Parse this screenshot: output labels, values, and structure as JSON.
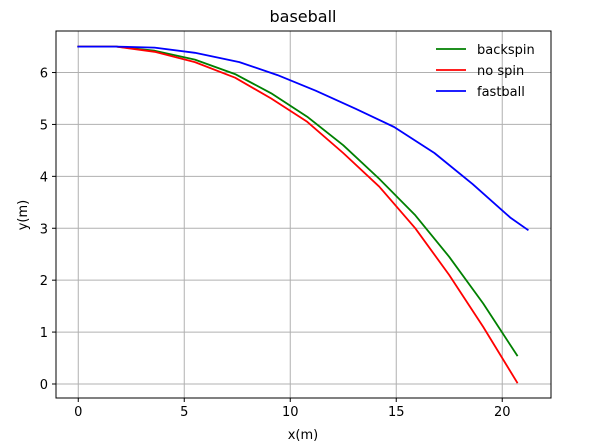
{
  "chart_data": {
    "type": "line",
    "title": "baseball",
    "xlabel": "x(m)",
    "ylabel": "y(m)",
    "xlim": [
      -1.05,
      22.3
    ],
    "ylim": [
      -0.27,
      6.8
    ],
    "xticks": [
      0,
      5,
      10,
      15,
      20
    ],
    "yticks": [
      0,
      1,
      2,
      3,
      4,
      5,
      6
    ],
    "grid": true,
    "legend_position": "top-right",
    "series": [
      {
        "name": "backspin",
        "color": "#008000",
        "x": [
          0,
          1.8,
          3.6,
          5.5,
          7.4,
          9.1,
          10.8,
          12.5,
          14.2,
          15.9,
          17.5,
          19.1,
          20.7
        ],
        "y": [
          6.5,
          6.5,
          6.42,
          6.25,
          5.97,
          5.6,
          5.15,
          4.6,
          3.95,
          3.25,
          2.45,
          1.55,
          0.55
        ]
      },
      {
        "name": "no spin",
        "color": "#ff0000",
        "x": [
          0,
          1.8,
          3.6,
          5.5,
          7.4,
          9.1,
          10.8,
          12.5,
          14.2,
          15.9,
          17.5,
          19.1,
          20.7
        ],
        "y": [
          6.5,
          6.5,
          6.4,
          6.2,
          5.9,
          5.5,
          5.05,
          4.45,
          3.8,
          3.0,
          2.1,
          1.1,
          0.03
        ]
      },
      {
        "name": "fastball",
        "color": "#0000ff",
        "x": [
          0,
          1.8,
          3.6,
          5.5,
          7.6,
          9.4,
          11.2,
          13.1,
          14.9,
          16.8,
          18.6,
          20.4,
          21.2
        ],
        "y": [
          6.5,
          6.5,
          6.48,
          6.38,
          6.2,
          5.95,
          5.65,
          5.3,
          4.95,
          4.45,
          3.85,
          3.2,
          2.97
        ]
      }
    ]
  }
}
